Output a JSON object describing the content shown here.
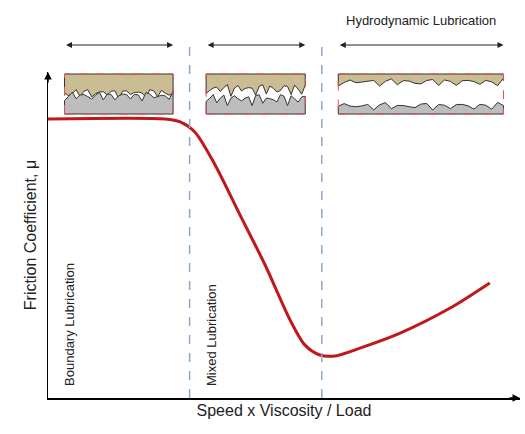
{
  "chart_data": {
    "type": "line",
    "x_label": "Speed x Viscosity / Load",
    "y_label": "Friction Coefficient, μ",
    "x": [
      0,
      24.8,
      28.0,
      31.1,
      35.4,
      40.7,
      46.0,
      51.3,
      54.4,
      57.6,
      60.8,
      66.1,
      74.6,
      85.2,
      93.6
    ],
    "values": [
      85.6,
      85.6,
      84.7,
      81.6,
      71.5,
      56.1,
      40.8,
      23.9,
      16.3,
      13.2,
      12.9,
      15.3,
      19.9,
      27.6,
      35.3
    ],
    "color": "#c0171b",
    "line_style": "solid",
    "xlim": [
      0,
      100
    ],
    "ylim": [
      0,
      100
    ],
    "tick_labels": false,
    "grid": false,
    "regions": [
      {
        "label": "Boundary Lubrication",
        "start": 0,
        "end": 30
      },
      {
        "label": "Mixed Lubrication",
        "start": 30,
        "end": 58
      },
      {
        "label": "Hydrodynamic Lubrication",
        "start": 58,
        "end": 100
      }
    ]
  }
}
